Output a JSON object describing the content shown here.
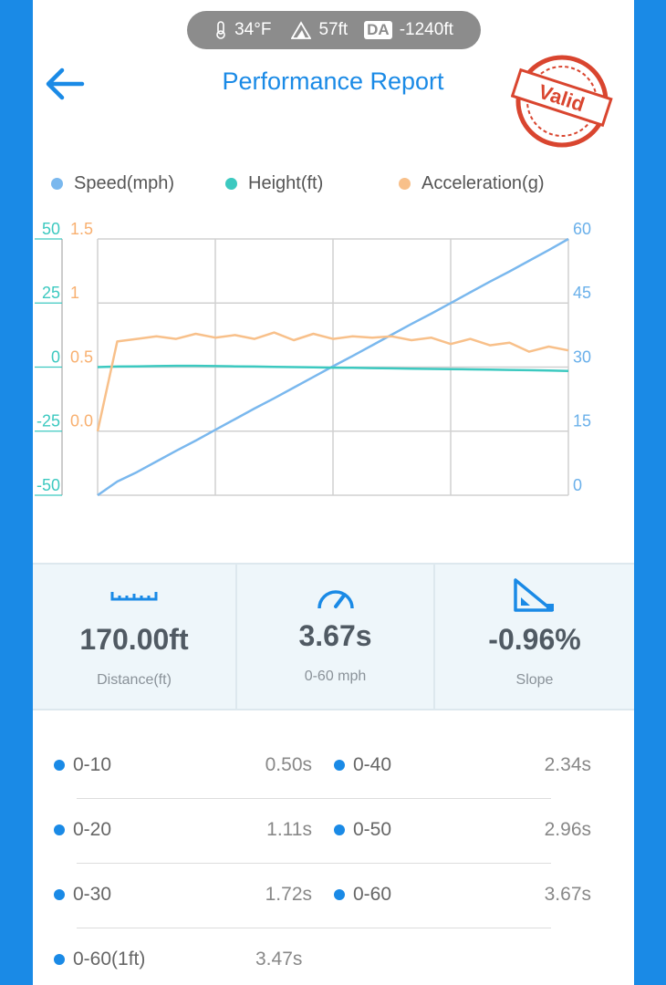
{
  "status_bar": {
    "temperature": "34°F",
    "elevation": "57ft",
    "da_badge": "DA",
    "density_altitude": "-1240ft"
  },
  "header": {
    "title": "Performance Report",
    "stamp": "Valid"
  },
  "chart_data": {
    "type": "line",
    "series": [
      {
        "name": "Speed(mph)",
        "color": "#7ab8ee",
        "axis": "y2",
        "values": [
          0,
          3.2,
          5.4,
          7.9,
          10.4,
          12.8,
          15.3,
          17.8,
          20.3,
          22.7,
          25.2,
          27.7,
          30.2,
          32.6,
          35.1,
          37.6,
          40.1,
          42.5,
          45.0,
          47.5,
          50.0,
          52.4,
          54.9,
          57.4,
          60
        ]
      },
      {
        "name": "Height(ft)",
        "color": "#3cc9c0",
        "axis": "y",
        "values": [
          0,
          0.2,
          0.3,
          0.4,
          0.5,
          0.5,
          0.4,
          0.3,
          0.2,
          0.1,
          0,
          -0.1,
          -0.2,
          -0.3,
          -0.4,
          -0.5,
          -0.6,
          -0.7,
          -0.8,
          -0.9,
          -1.0,
          -1.1,
          -1.2,
          -1.3,
          -1.5
        ]
      },
      {
        "name": "Acceleration(g)",
        "color": "#f8c08a",
        "axis": "y3",
        "values": [
          0,
          0.7,
          0.72,
          0.74,
          0.72,
          0.76,
          0.73,
          0.75,
          0.72,
          0.77,
          0.71,
          0.76,
          0.72,
          0.74,
          0.73,
          0.74,
          0.71,
          0.73,
          0.68,
          0.72,
          0.67,
          0.69,
          0.62,
          0.66,
          0.63
        ]
      }
    ],
    "ylim": [
      -50,
      50
    ],
    "yticks": [
      50,
      25,
      0,
      -25,
      -50
    ],
    "y3lim": [
      -0.5,
      1.5
    ],
    "y3ticks": [
      1.5,
      1,
      0.5,
      {
        "value": 0,
        "label": "0.0"
      }
    ],
    "y2lim": [
      0,
      60
    ],
    "y2ticks": [
      60,
      45,
      30,
      15,
      0
    ],
    "grid": true
  },
  "stats": [
    {
      "value": "170.00ft",
      "label": "Distance(ft)"
    },
    {
      "value": "3.67s",
      "label": "0-60 mph"
    },
    {
      "value": "-0.96%",
      "label": "Slope"
    }
  ],
  "splits": [
    [
      {
        "label": "0-10",
        "time": "0.50s"
      },
      {
        "label": "0-40",
        "time": "2.34s"
      }
    ],
    [
      {
        "label": "0-20",
        "time": "1.11s"
      },
      {
        "label": "0-50",
        "time": "2.96s"
      }
    ],
    [
      {
        "label": "0-30",
        "time": "1.72s"
      },
      {
        "label": "0-60",
        "time": "3.67s"
      }
    ],
    [
      {
        "label": "0-60(1ft)",
        "time": "3.47s"
      }
    ]
  ]
}
